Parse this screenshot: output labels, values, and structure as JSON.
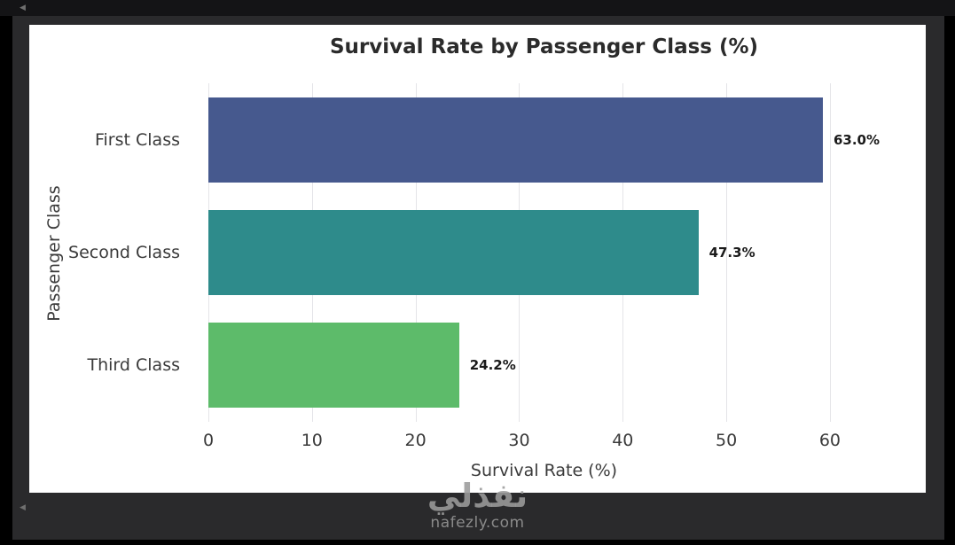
{
  "icons": {
    "collapse_arrow": "◀"
  },
  "watermark": {
    "arabic": "نفذلي",
    "domain": "nafezly.com"
  },
  "frame_colors": {
    "outer": "#000000",
    "inner": "#2a2a2c",
    "top_strip": "#141416",
    "card": "#ffffff"
  },
  "chart_data": {
    "type": "bar",
    "orientation": "horizontal",
    "title": "Survival Rate by Passenger Class (%)",
    "xlabel": "Survival Rate (%)",
    "ylabel": "Passenger Class",
    "categories": [
      "First Class",
      "Second Class",
      "Third Class"
    ],
    "values": [
      63.0,
      47.3,
      24.2
    ],
    "value_labels": [
      "63.0%",
      "47.3%",
      "24.2%"
    ],
    "bar_colors": [
      "#46598e",
      "#2e8b8b",
      "#5dbb6a"
    ],
    "xticks": [
      0,
      10,
      20,
      30,
      40,
      50,
      60
    ],
    "xlim": [
      0,
      64.8
    ],
    "grid": true,
    "gridline_color": "#e4e4e8",
    "legend": "none"
  }
}
